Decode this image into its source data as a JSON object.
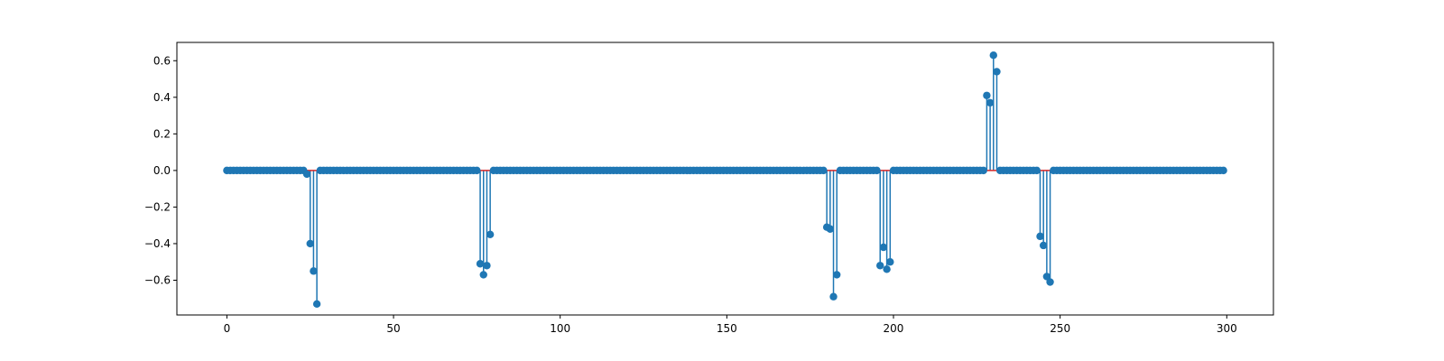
{
  "chart_data": {
    "type": "stem",
    "title": "",
    "xlabel": "",
    "ylabel": "",
    "xlim": [
      -15,
      314
    ],
    "ylim": [
      -0.79,
      0.7
    ],
    "x_ticks": [
      0,
      50,
      100,
      150,
      200,
      250,
      300
    ],
    "y_ticks": [
      -0.6,
      -0.4,
      -0.2,
      0.0,
      0.2,
      0.4,
      0.6
    ],
    "x_tick_labels": [
      "0",
      "50",
      "100",
      "150",
      "200",
      "250",
      "300"
    ],
    "y_tick_labels": [
      "−0.6",
      "−0.4",
      "−0.2",
      "0.0",
      "0.2",
      "0.4",
      "0.6"
    ],
    "n_points": 300,
    "x_start": 0,
    "baseline": 0,
    "nonzero_points": [
      {
        "x": 24,
        "y": -0.02
      },
      {
        "x": 25,
        "y": -0.4
      },
      {
        "x": 26,
        "y": -0.55
      },
      {
        "x": 27,
        "y": -0.73
      },
      {
        "x": 76,
        "y": -0.51
      },
      {
        "x": 77,
        "y": -0.57
      },
      {
        "x": 78,
        "y": -0.52
      },
      {
        "x": 79,
        "y": -0.35
      },
      {
        "x": 180,
        "y": -0.31
      },
      {
        "x": 181,
        "y": -0.32
      },
      {
        "x": 182,
        "y": -0.69
      },
      {
        "x": 183,
        "y": -0.57
      },
      {
        "x": 196,
        "y": -0.52
      },
      {
        "x": 197,
        "y": -0.42
      },
      {
        "x": 198,
        "y": -0.54
      },
      {
        "x": 199,
        "y": -0.5
      },
      {
        "x": 228,
        "y": 0.41
      },
      {
        "x": 229,
        "y": 0.37
      },
      {
        "x": 230,
        "y": 0.63
      },
      {
        "x": 231,
        "y": 0.54
      },
      {
        "x": 244,
        "y": -0.36
      },
      {
        "x": 245,
        "y": -0.41
      },
      {
        "x": 246,
        "y": -0.58
      },
      {
        "x": 247,
        "y": -0.61
      }
    ],
    "colors": {
      "stem": "#1f77b4",
      "marker": "#1f77b4",
      "baseline": "#d62728"
    }
  }
}
